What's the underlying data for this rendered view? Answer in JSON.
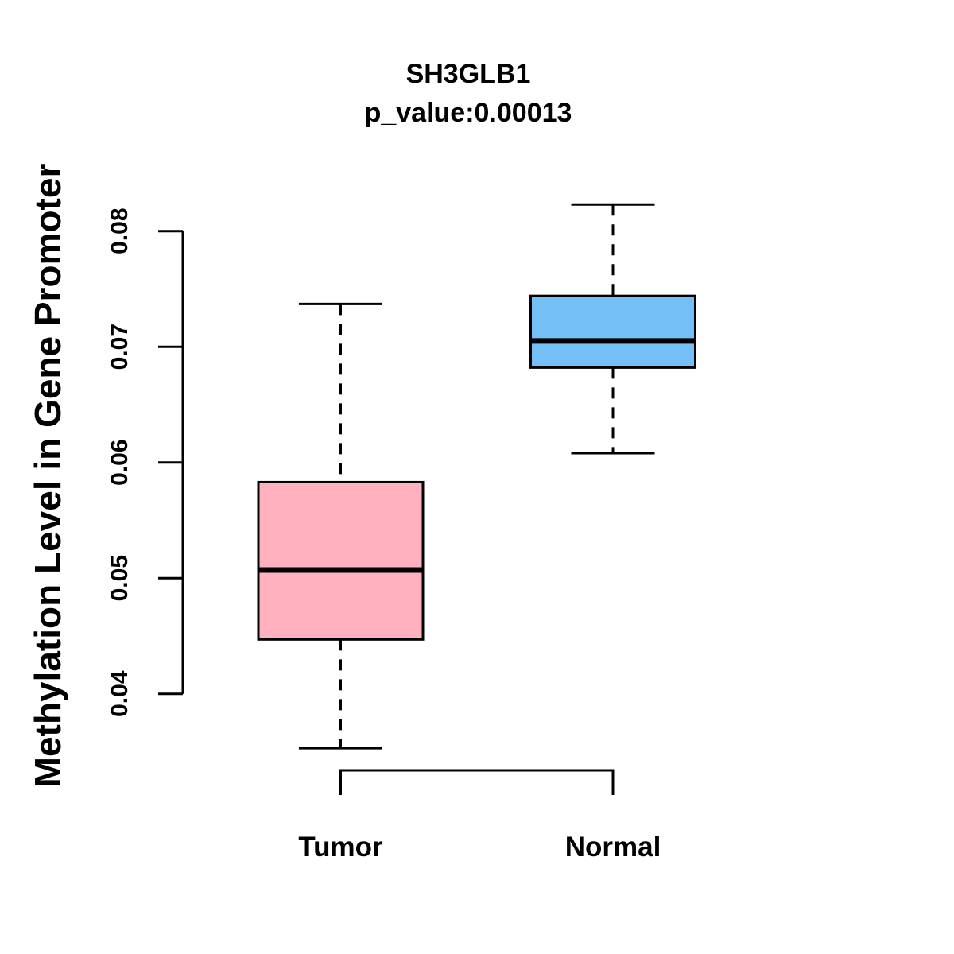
{
  "chart_data": {
    "type": "boxplot",
    "title": "SH3GLB1",
    "subtitle": "p_value:0.00013",
    "gene": "SH3GLB1",
    "p_value": 0.00013,
    "ylabel": "Methylation Level in Gene Promoter",
    "xlabel": "",
    "ylim": [
      0.04,
      0.08
    ],
    "y_ticks": [
      "0.04",
      "0.05",
      "0.06",
      "0.07",
      "0.08"
    ],
    "grid": false,
    "legend": "none",
    "categories": [
      "Tumor",
      "Normal"
    ],
    "groups": [
      {
        "label": "Tumor",
        "color": "#FFB1C0",
        "border_color": "#000000",
        "whisker_low": 0.0353,
        "q1": 0.0447,
        "median": 0.0507,
        "q3": 0.0583,
        "whisker_high": 0.0737
      },
      {
        "label": "Normal",
        "color": "#74C0F6",
        "border_color": "#000000",
        "whisker_low": 0.0608,
        "q1": 0.0682,
        "median": 0.0705,
        "q3": 0.0744,
        "whisker_high": 0.0823
      }
    ]
  }
}
